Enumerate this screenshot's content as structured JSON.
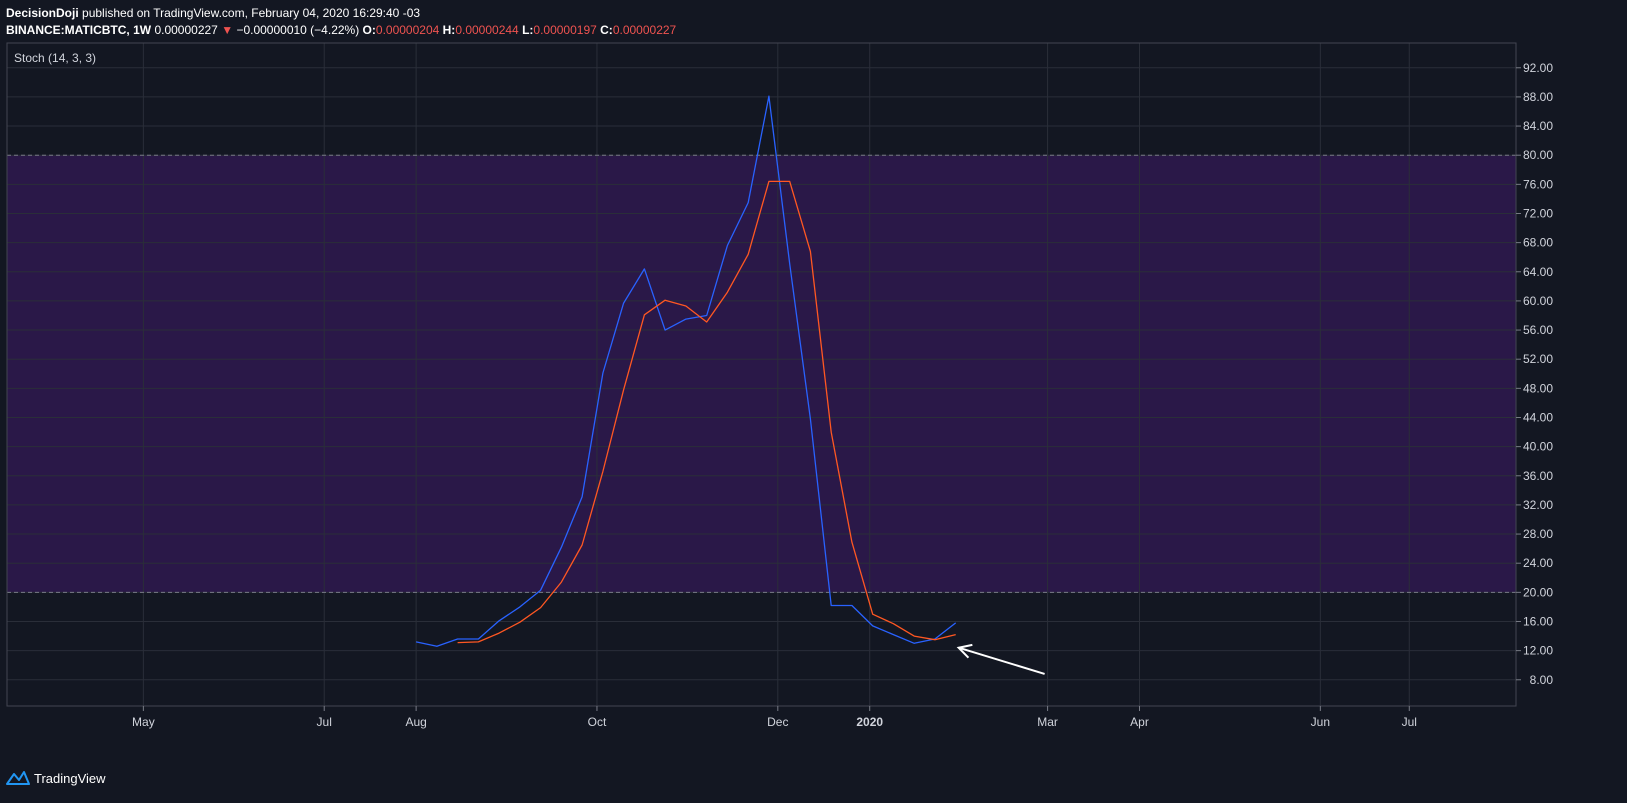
{
  "header": {
    "author": "DecisionDoji",
    "published": "published on TradingView.com, February 04, 2020 16:29:40 -03",
    "symbol": "BINANCE:MATICBTC, 1W",
    "price": "0.00000227",
    "change": "−0.00000010 (−4.22%)",
    "open_label": "O:",
    "open": "0.00000204",
    "high_label": "H:",
    "high": "0.00000244",
    "low_label": "L:",
    "low": "0.00000197",
    "close_label": "C:",
    "close": "0.00000227"
  },
  "footer": {
    "brand": "TradingView",
    "icon": "tradingview-logo-icon"
  },
  "colors": {
    "background": "#131722",
    "band": "#2a1848",
    "k_line": "#2962ff",
    "d_line": "#ff5722",
    "grid": "#2a2e39",
    "axis_text": "#d1d4dc",
    "negative": "#ef5350"
  },
  "chart_data": {
    "type": "line",
    "title": "Stoch (14, 3, 3)",
    "y_ticks": [
      "92.00",
      "88.00",
      "84.00",
      "80.00",
      "76.00",
      "72.00",
      "68.00",
      "64.00",
      "60.00",
      "56.00",
      "52.00",
      "48.00",
      "44.00",
      "40.00",
      "36.00",
      "32.00",
      "28.00",
      "24.00",
      "20.00",
      "16.00",
      "12.00",
      "8.00"
    ],
    "ylim": [
      4.4,
      95.4
    ],
    "band": [
      20,
      80
    ],
    "x_ticks": [
      {
        "label": "May",
        "date": "2019-05-01"
      },
      {
        "label": "Jul",
        "date": "2019-07-01"
      },
      {
        "label": "Aug",
        "date": "2019-08-01"
      },
      {
        "label": "Oct",
        "date": "2019-10-01"
      },
      {
        "label": "Dec",
        "date": "2019-12-01"
      },
      {
        "label": "2020",
        "date": "2020-01-01",
        "bold": true
      },
      {
        "label": "Mar",
        "date": "2020-03-01"
      },
      {
        "label": "Apr",
        "date": "2020-04-01"
      },
      {
        "label": "Jun",
        "date": "2020-06-01"
      },
      {
        "label": "Jul",
        "date": "2020-07-01"
      }
    ],
    "xlim": [
      "2019-03-16",
      "2020-08-06"
    ],
    "series": [
      {
        "color": "#2962ff",
        "points": [
          [
            "2019-08-01",
            13.2
          ],
          [
            "2019-08-08",
            12.6
          ],
          [
            "2019-08-15",
            13.6
          ],
          [
            "2019-08-22",
            13.6
          ],
          [
            "2019-08-29",
            16.1
          ],
          [
            "2019-09-05",
            18.0
          ],
          [
            "2019-09-12",
            20.3
          ],
          [
            "2019-09-19",
            26.2
          ],
          [
            "2019-09-26",
            33.1
          ],
          [
            "2019-10-03",
            50.1
          ],
          [
            "2019-10-10",
            59.7
          ],
          [
            "2019-10-17",
            64.4
          ],
          [
            "2019-10-24",
            56.0
          ],
          [
            "2019-10-31",
            57.5
          ],
          [
            "2019-11-07",
            58.0
          ],
          [
            "2019-11-14",
            67.6
          ],
          [
            "2019-11-21",
            73.5
          ],
          [
            "2019-11-28",
            88.1
          ],
          [
            "2019-12-05",
            65.1
          ],
          [
            "2019-12-12",
            43.8
          ],
          [
            "2019-12-19",
            18.2
          ],
          [
            "2019-12-26",
            18.2
          ],
          [
            "2020-01-02",
            15.4
          ],
          [
            "2020-01-09",
            14.2
          ],
          [
            "2020-01-16",
            13.0
          ],
          [
            "2020-01-23",
            13.6
          ],
          [
            "2020-01-30",
            15.8
          ]
        ]
      },
      {
        "color": "#ff5722",
        "points": [
          [
            "2019-08-15",
            13.1
          ],
          [
            "2019-08-22",
            13.2
          ],
          [
            "2019-08-29",
            14.4
          ],
          [
            "2019-09-05",
            15.9
          ],
          [
            "2019-09-12",
            17.9
          ],
          [
            "2019-09-19",
            21.4
          ],
          [
            "2019-09-26",
            26.5
          ],
          [
            "2019-10-03",
            36.6
          ],
          [
            "2019-10-10",
            47.8
          ],
          [
            "2019-10-17",
            58.1
          ],
          [
            "2019-10-24",
            60.1
          ],
          [
            "2019-10-31",
            59.3
          ],
          [
            "2019-11-07",
            57.1
          ],
          [
            "2019-11-14",
            61.2
          ],
          [
            "2019-11-21",
            66.4
          ],
          [
            "2019-11-28",
            76.4
          ],
          [
            "2019-12-05",
            76.4
          ],
          [
            "2019-12-12",
            66.8
          ],
          [
            "2019-12-19",
            42.0
          ],
          [
            "2019-12-26",
            26.9
          ],
          [
            "2020-01-02",
            17.0
          ],
          [
            "2020-01-09",
            15.7
          ],
          [
            "2020-01-16",
            14.0
          ],
          [
            "2020-01-23",
            13.5
          ],
          [
            "2020-01-30",
            14.2
          ]
        ]
      }
    ],
    "annotations": [
      {
        "type": "arrow",
        "from": [
          "2020-02-29",
          8.8
        ],
        "to": [
          "2020-01-31",
          12.4
        ],
        "color": "#ffffff"
      }
    ]
  }
}
